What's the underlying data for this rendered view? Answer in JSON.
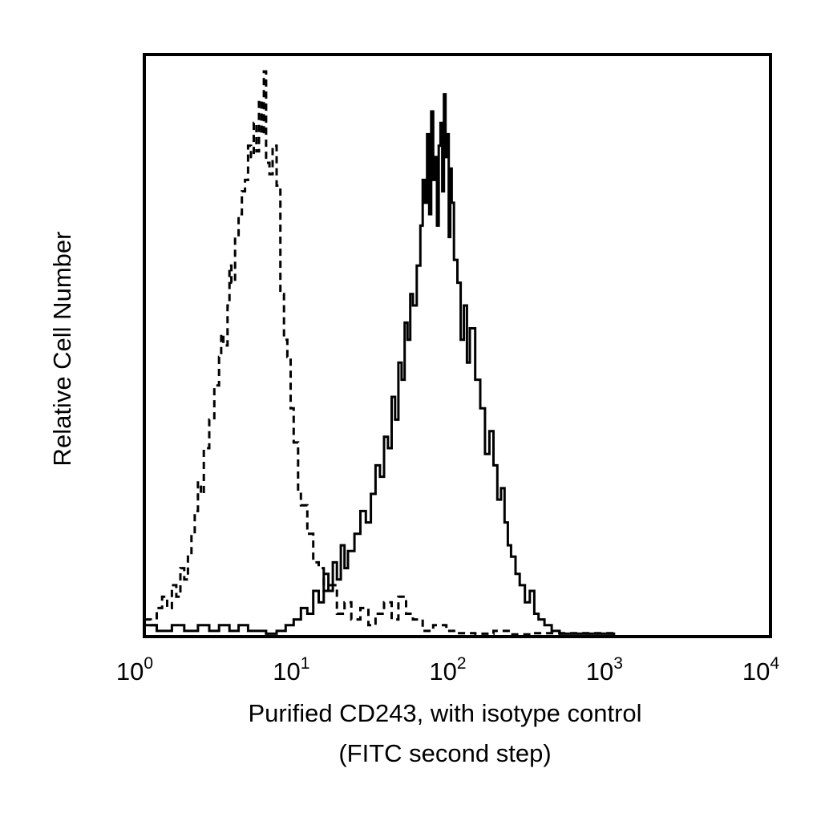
{
  "chart_data": {
    "type": "line",
    "title": "",
    "xlabel": "Purified CD243, with isotype control",
    "xlabel_line2": "(FITC second step)",
    "ylabel": "Relative Cell Number",
    "x_scale": "log",
    "xlim": [
      1,
      10000
    ],
    "ylim": [
      0,
      100
    ],
    "x_ticks": [
      {
        "value": 1,
        "base": "10",
        "exp": "0"
      },
      {
        "value": 10,
        "base": "10",
        "exp": "1"
      },
      {
        "value": 100,
        "base": "10",
        "exp": "2"
      },
      {
        "value": 1000,
        "base": "10",
        "exp": "3"
      },
      {
        "value": 10000,
        "base": "10",
        "exp": "4"
      }
    ],
    "grid": false,
    "legend": "none",
    "series": [
      {
        "style": "dashed",
        "color": "#000000",
        "x": [
          1.0,
          1.1,
          1.2,
          1.3,
          1.4,
          1.5,
          1.6,
          1.7,
          1.8,
          1.9,
          2.0,
          2.1,
          2.2,
          2.3,
          2.4,
          2.6,
          2.8,
          3.0,
          3.1,
          3.2,
          3.4,
          3.5,
          3.6,
          3.8,
          4.0,
          4.2,
          4.4,
          4.6,
          4.8,
          5.0,
          5.2,
          5.4,
          5.6,
          5.8,
          6.0,
          6.3,
          6.6,
          7.0,
          7.4,
          7.8,
          8.2,
          8.6,
          9.0,
          9.6,
          10.0,
          11.0,
          12.0,
          13.0,
          14.0,
          15.0,
          17.0,
          19.0,
          21.0,
          24.0,
          27.0,
          30.0,
          34.0,
          38.0,
          42.0,
          47.0,
          52.0,
          60.0,
          70.0,
          85.0,
          100.0,
          130.0,
          170.0,
          220.0,
          300.0,
          1000.0,
          10000.0
        ],
        "y": [
          3,
          2,
          5,
          7,
          5,
          9,
          7,
          12,
          10,
          14,
          18,
          22,
          27,
          25,
          33,
          38,
          44,
          49,
          53,
          51,
          58,
          65,
          62,
          70,
          74,
          78,
          80,
          86,
          84,
          90,
          85,
          94,
          88,
          99,
          83,
          81,
          86,
          79,
          60,
          52,
          49,
          40,
          34,
          25,
          23,
          18,
          13,
          12,
          8,
          9,
          4,
          6,
          3,
          5,
          2,
          4,
          6,
          3,
          7,
          4,
          3,
          1,
          2,
          1,
          0.6,
          0.5,
          1,
          0.4,
          0.6,
          0,
          0
        ]
      },
      {
        "style": "solid",
        "color": "#000000",
        "x": [
          1.0,
          1.2,
          1.5,
          1.8,
          2.2,
          2.6,
          3.0,
          3.5,
          4.0,
          4.6,
          5.3,
          6.0,
          7.0,
          8.0,
          9.0,
          10.0,
          11.0,
          12.0,
          13.0,
          14.0,
          15.0,
          16.0,
          17.0,
          18.0,
          19.0,
          20.0,
          22.0,
          24.0,
          26.0,
          28.0,
          30.0,
          32.0,
          34.0,
          36.0,
          38.0,
          40.0,
          42.0,
          44.0,
          46.0,
          48.0,
          50.0,
          52.0,
          55.0,
          58.0,
          60.0,
          62.0,
          64.0,
          66.0,
          68.0,
          70.0,
          72.0,
          74.0,
          76.0,
          78.0,
          80.0,
          82.0,
          84.0,
          86.0,
          88.0,
          90.0,
          92.0,
          95.0,
          100.0,
          105.0,
          110.0,
          115.0,
          120.0,
          130.0,
          140.0,
          150.0,
          160.0,
          170.0,
          180.0,
          190.0,
          200.0,
          210.0,
          220.0,
          235.0,
          250.0,
          270.0,
          290.0,
          310.0,
          330.0,
          360.0,
          400.0,
          450.0,
          1000.0,
          10000.0
        ],
        "y": [
          2,
          1,
          2,
          1,
          2,
          1,
          2,
          1,
          2,
          1,
          1,
          0.5,
          1,
          2,
          3,
          5,
          4,
          8,
          6,
          11,
          8,
          13,
          10,
          16,
          12,
          15,
          18,
          22,
          20,
          25,
          30,
          28,
          35,
          33,
          42,
          38,
          48,
          45,
          55,
          52,
          60,
          58,
          65,
          72,
          80,
          76,
          88,
          74,
          92,
          80,
          84,
          72,
          86,
          90,
          78,
          95,
          84,
          88,
          70,
          82,
          76,
          66,
          62,
          52,
          58,
          48,
          54,
          45,
          40,
          32,
          36,
          30,
          24,
          26,
          20,
          16,
          14,
          11,
          9,
          6,
          8,
          4,
          3,
          2,
          1,
          0.5,
          0,
          0
        ]
      }
    ]
  }
}
